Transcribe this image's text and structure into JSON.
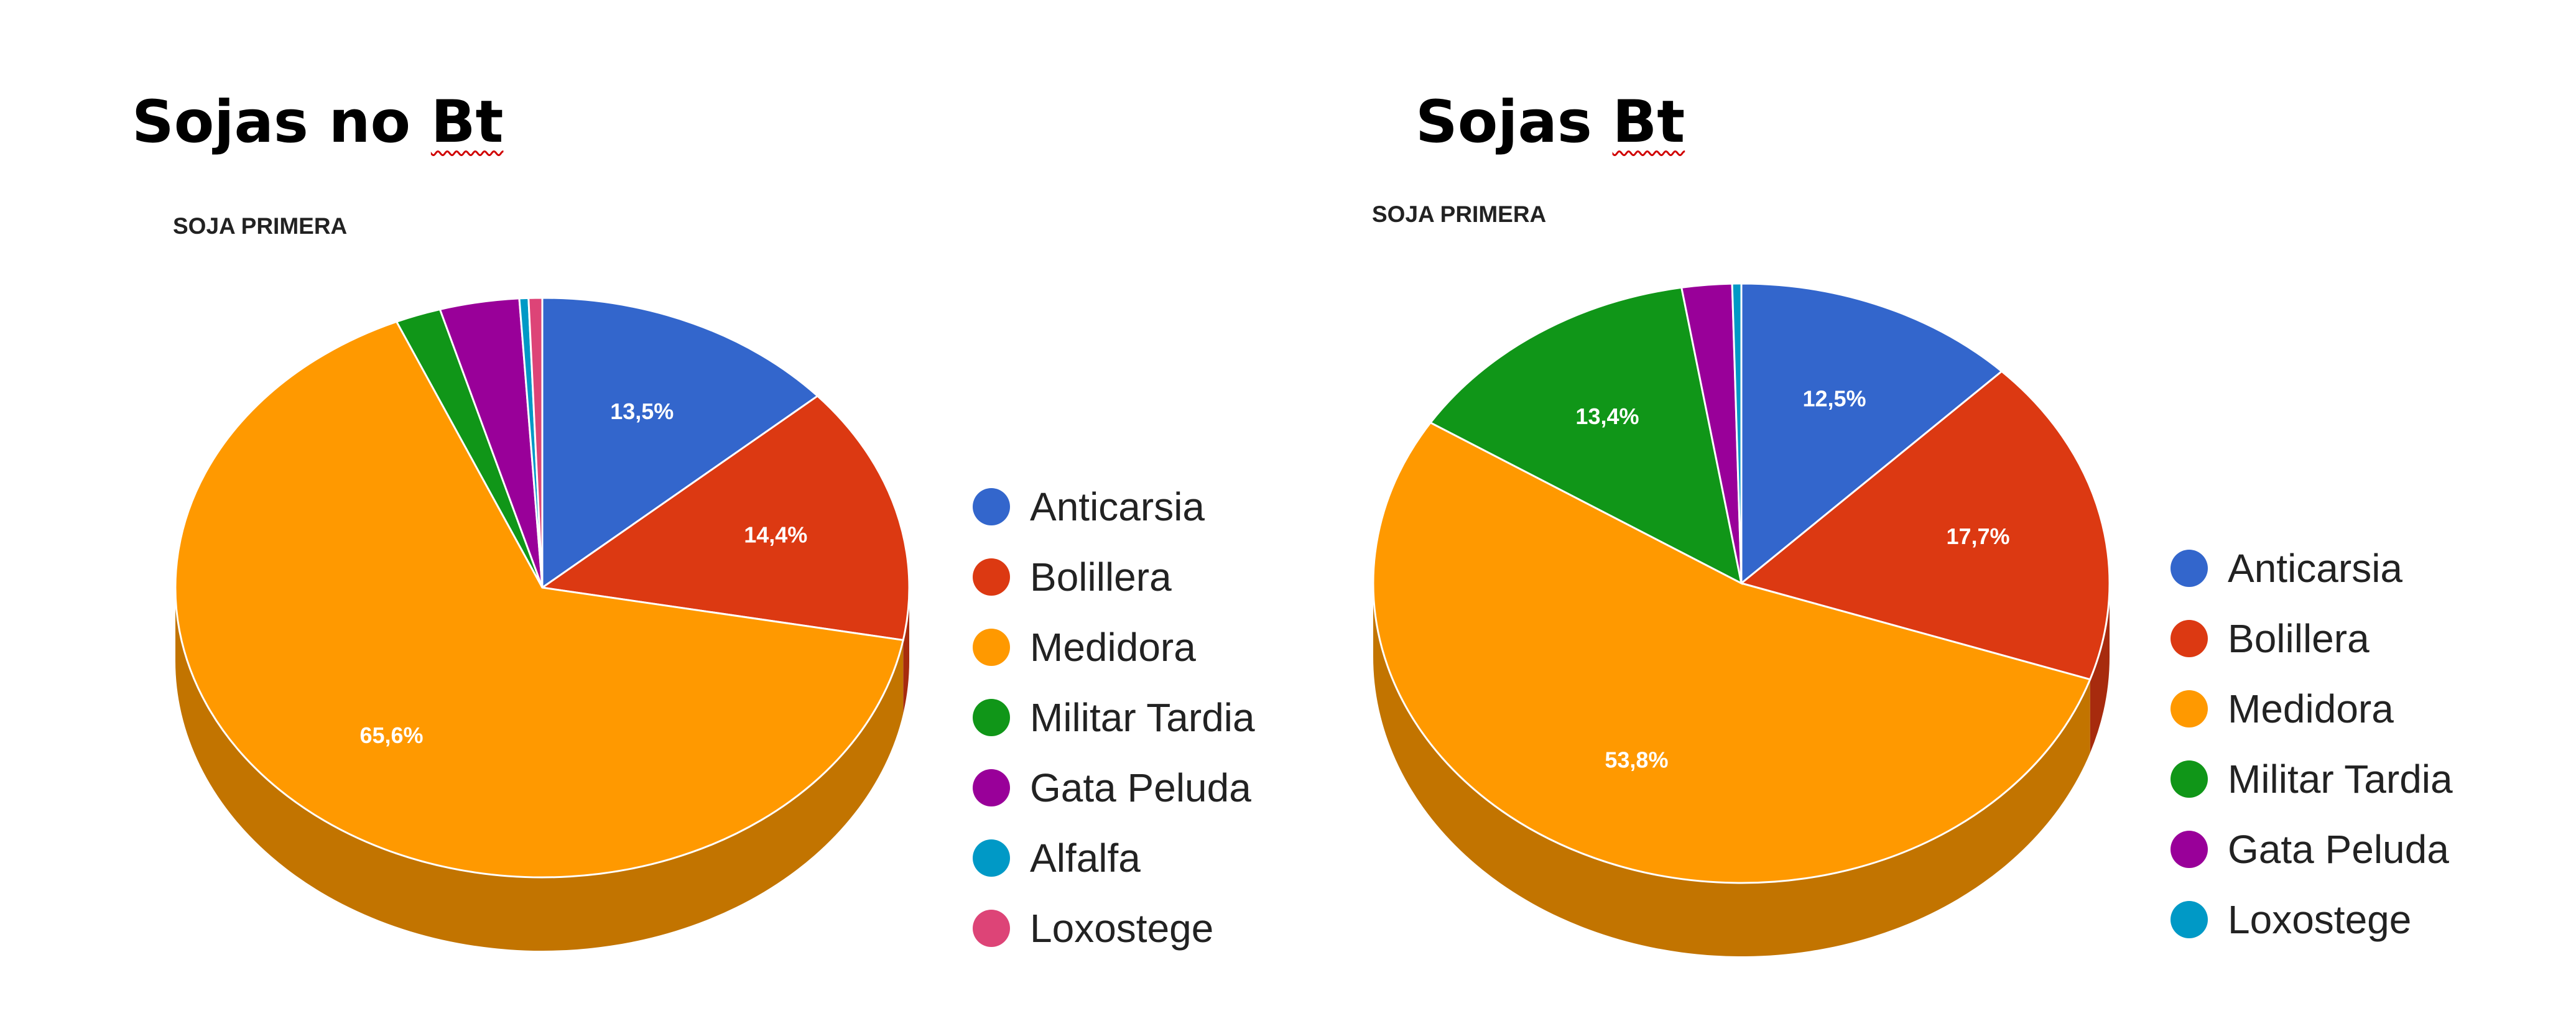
{
  "chart_data": [
    {
      "type": "pie",
      "heading_main": "Sojas no ",
      "heading_mark": "Bt",
      "title": "SOJA PRIMERA",
      "legend": "right",
      "three_d": true,
      "slices": [
        {
          "name": "Anticarsia",
          "value": 13.5,
          "label": "13,5%",
          "color": "#3366cc"
        },
        {
          "name": "Bolillera",
          "value": 14.4,
          "label": "14,4%",
          "color": "#dc3912"
        },
        {
          "name": "Medidora",
          "value": 65.6,
          "label": "65,6%",
          "color": "#ff9900"
        },
        {
          "name": "Militar Tardia",
          "value": 2.0,
          "label": "",
          "color": "#109618"
        },
        {
          "name": "Gata Peluda",
          "value": 3.5,
          "label": "",
          "color": "#990099"
        },
        {
          "name": "Alfalfa",
          "value": 0.4,
          "label": "",
          "color": "#0099c6"
        },
        {
          "name": "Loxostege",
          "value": 0.6,
          "label": "",
          "color": "#dd4477"
        }
      ]
    },
    {
      "type": "pie",
      "heading_main": "Sojas ",
      "heading_mark": "Bt",
      "title": "SOJA PRIMERA",
      "legend": "right",
      "three_d": true,
      "slices": [
        {
          "name": "Anticarsia",
          "value": 12.5,
          "label": "12,5%",
          "color": "#3366cc"
        },
        {
          "name": "Bolillera",
          "value": 17.7,
          "label": "17,7%",
          "color": "#dc3912"
        },
        {
          "name": "Medidora",
          "value": 53.8,
          "label": "53,8%",
          "color": "#ff9900"
        },
        {
          "name": "Militar Tardia",
          "value": 13.4,
          "label": "13,4%",
          "color": "#109618"
        },
        {
          "name": "Gata Peluda",
          "value": 2.2,
          "label": "",
          "color": "#990099"
        },
        {
          "name": "Loxostege",
          "value": 0.4,
          "label": "",
          "color": "#0099c6"
        }
      ]
    }
  ]
}
